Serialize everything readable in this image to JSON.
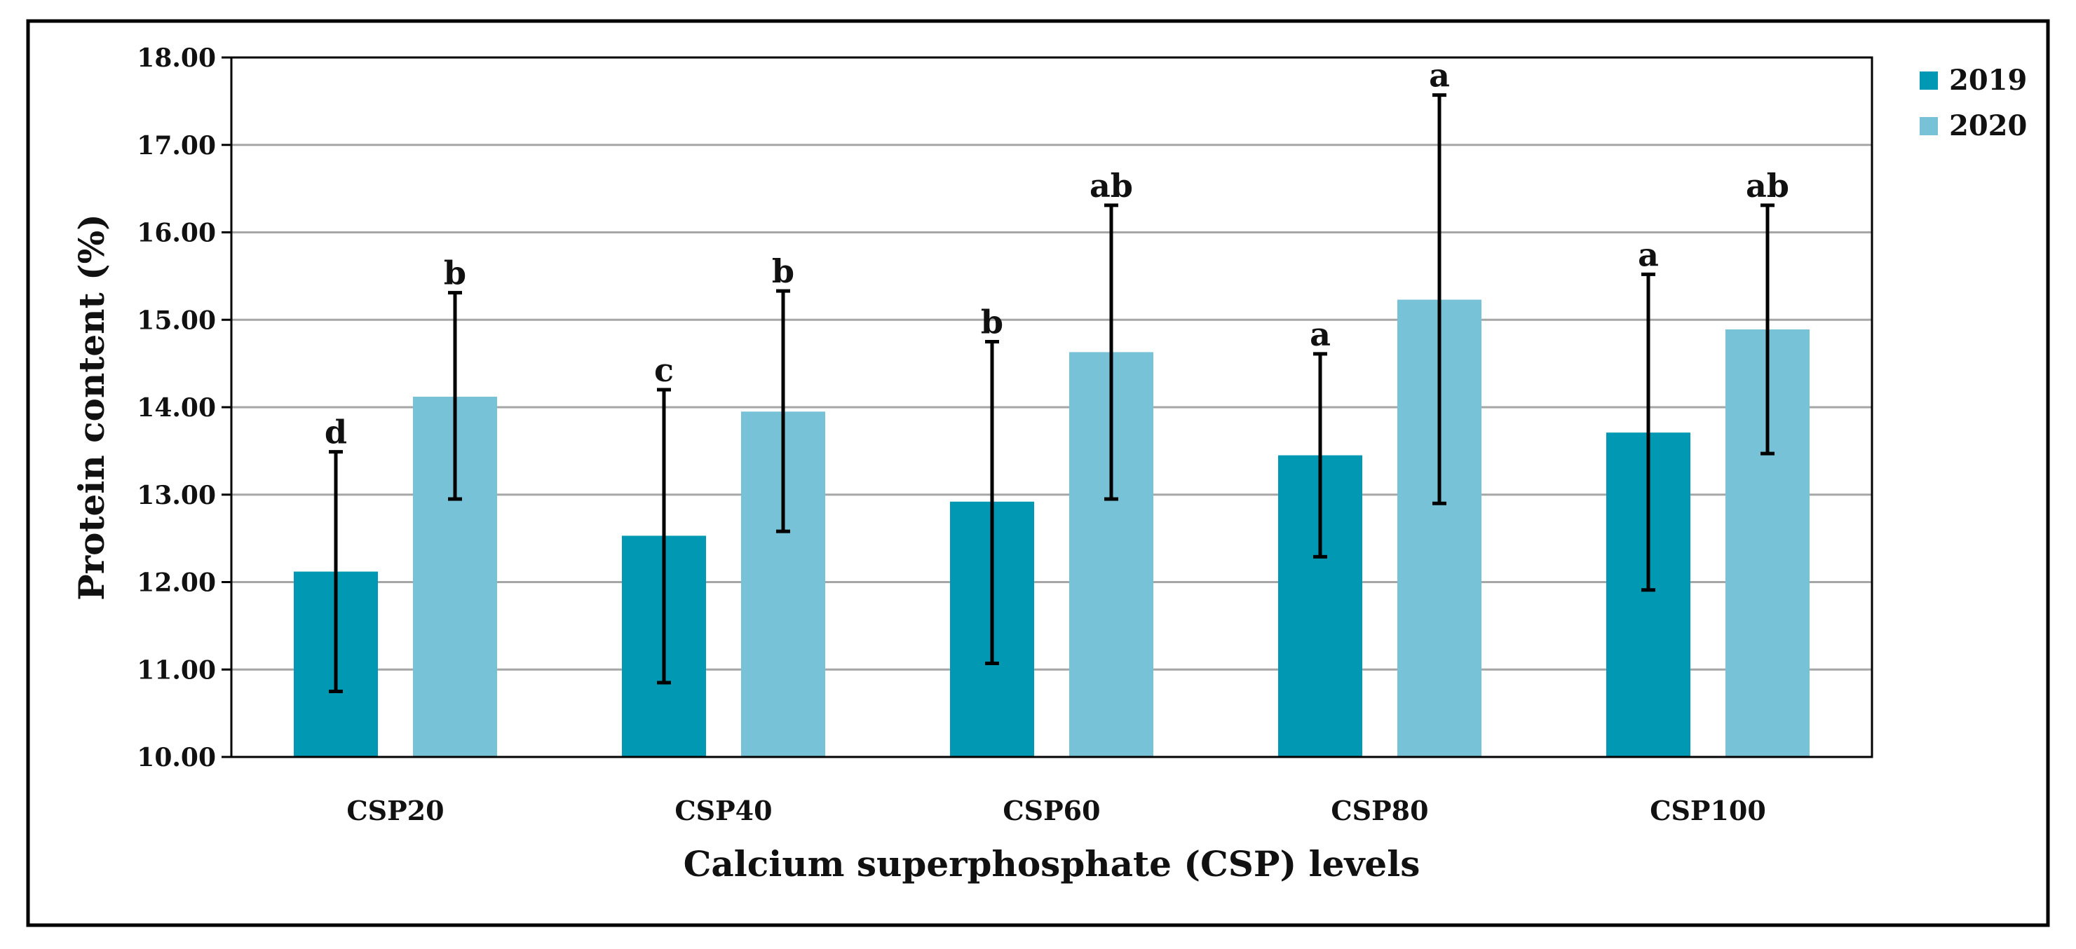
{
  "chart_data": {
    "type": "bar",
    "title": "",
    "xlabel": "Calcium superphosphate (CSP) levels",
    "ylabel": "Protein content (%)",
    "ylim": [
      10,
      18
    ],
    "ytick_step": 1,
    "ytick_labels": [
      "10.00",
      "11.00",
      "12.00",
      "13.00",
      "14.00",
      "15.00",
      "16.00",
      "17.00",
      "18.00"
    ],
    "grid": true,
    "legend_position": "top-right",
    "categories": [
      "CSP20",
      "CSP40",
      "CSP60",
      "CSP80",
      "CSP100"
    ],
    "series": [
      {
        "name": "2019",
        "color": "#0098B2",
        "values": [
          12.12,
          12.53,
          12.92,
          13.45,
          13.71
        ],
        "error_low": [
          10.75,
          10.85,
          11.07,
          12.29,
          11.91
        ],
        "error_high": [
          13.49,
          14.2,
          14.75,
          14.61,
          15.52
        ],
        "significance": [
          "d",
          "c",
          "b",
          "a",
          "a"
        ]
      },
      {
        "name": "2020",
        "color": "#77C2D6",
        "values": [
          14.12,
          13.95,
          14.63,
          15.23,
          14.89
        ],
        "error_low": [
          12.95,
          12.58,
          12.95,
          12.9,
          13.47
        ],
        "error_high": [
          15.31,
          15.33,
          16.31,
          17.57,
          16.31
        ],
        "significance": [
          "b",
          "b",
          "ab",
          "a",
          "ab"
        ]
      }
    ]
  }
}
